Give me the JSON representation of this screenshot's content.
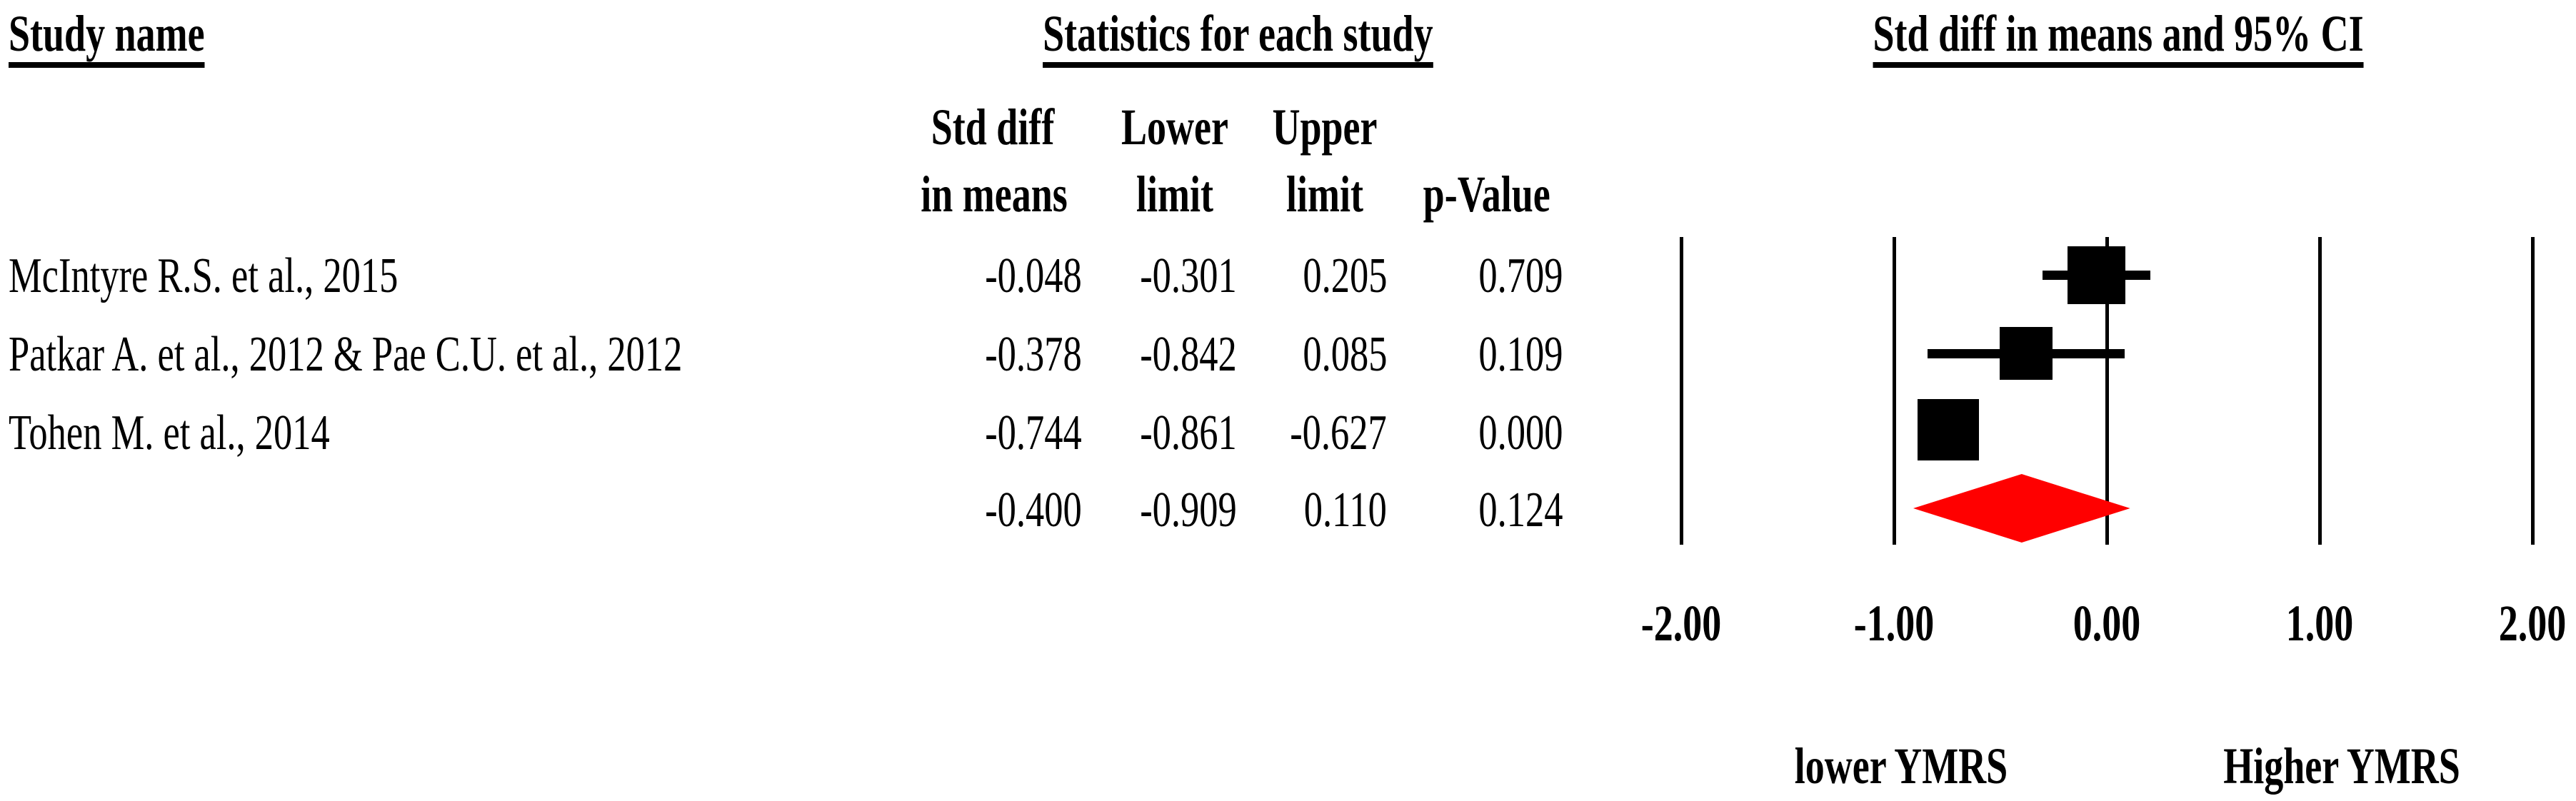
{
  "table": {
    "header": {
      "study": "Study name",
      "stats": "Statistics for each study",
      "plot": "Std diff in means and 95% CI"
    },
    "col_headers": {
      "std_diff_line1": "Std diff",
      "std_diff_line2": "in means",
      "lower_line1": "Lower",
      "lower_line2": "limit",
      "upper_line1": "Upper",
      "upper_line2": "limit",
      "p_value": "p-Value"
    },
    "rows": [
      {
        "study": "McIntyre R.S. et al., 2015",
        "std_diff": "-0.048",
        "lower_limit": "-0.301",
        "upper_limit": "0.205",
        "p_value": "0.709"
      },
      {
        "study": "Patkar A. et al., 2012 & Pae C.U. et al., 2012",
        "std_diff": "-0.378",
        "lower_limit": "-0.842",
        "upper_limit": "0.085",
        "p_value": "0.109"
      },
      {
        "study": "Tohen M. et al., 2014",
        "std_diff": "-0.744",
        "lower_limit": "-0.861",
        "upper_limit": "-0.627",
        "p_value": "0.000"
      },
      {
        "study": "",
        "std_diff": "-0.400",
        "lower_limit": "-0.909",
        "upper_limit": "0.110",
        "p_value": "0.124"
      }
    ]
  },
  "chart_data": {
    "type": "forest",
    "title": "Std diff in means and 95% CI",
    "x_axis": {
      "ticks": [
        -2,
        -1,
        0,
        1,
        2
      ],
      "tick_labels": [
        "-2.00",
        "-1.00",
        "0.00",
        "1.00",
        "2.00"
      ],
      "xlim": [
        -2.3,
        2.3
      ],
      "grid": "vertical-lines-at-ticks"
    },
    "studies": [
      {
        "name": "McIntyre R.S. et al., 2015",
        "mean": -0.048,
        "lower": -0.301,
        "upper": 0.205,
        "p": 0.709,
        "marker_size_px": 81
      },
      {
        "name": "Patkar A. et al., 2012 & Pae C.U. et al., 2012",
        "mean": -0.378,
        "lower": -0.842,
        "upper": 0.085,
        "p": 0.109,
        "marker_size_px": 74
      },
      {
        "name": "Tohen M. et al., 2014",
        "mean": -0.744,
        "lower": -0.861,
        "upper": -0.627,
        "p": 0.0,
        "marker_size_px": 86
      }
    ],
    "overall": {
      "mean": -0.4,
      "lower": -0.909,
      "upper": 0.11,
      "p": 0.124
    },
    "footer_labels": {
      "left": "lower YMRS",
      "right": "Higher YMRS"
    },
    "colors": {
      "marker": "#000000",
      "line": "#000000",
      "overall_diamond": "#ff0000"
    }
  }
}
